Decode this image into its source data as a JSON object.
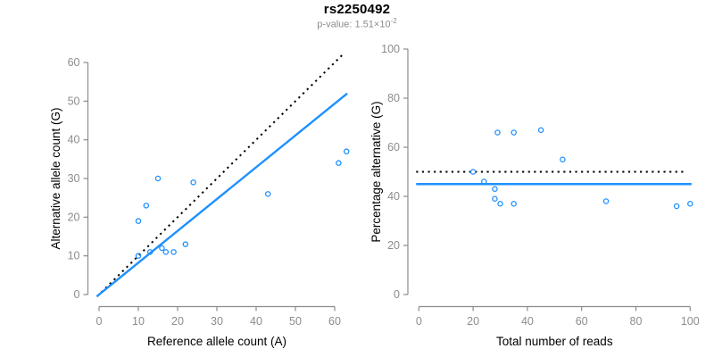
{
  "header": {
    "title": "rs2250492",
    "p_value_text": "p-value: 1.51×10",
    "p_value_exponent": "-2"
  },
  "colors": {
    "points": "#1e90ff",
    "fit_line": "#1e90ff",
    "identity_line": "#000000",
    "axis": "#8c8c8c",
    "tick_label": "#8c8c8c",
    "axis_title": "#000000",
    "subtitle": "#8c8c8c"
  },
  "chart_data": [
    {
      "type": "scatter",
      "title": "rs2250492",
      "xlabel": "Reference allele count (A)",
      "ylabel": "Alternative allele count (G)",
      "xlim": [
        0,
        60
      ],
      "ylim": [
        0,
        60
      ],
      "xticks": [
        0,
        10,
        20,
        30,
        40,
        50,
        60
      ],
      "yticks": [
        0,
        10,
        20,
        30,
        40,
        50,
        60
      ],
      "grid": false,
      "legend": false,
      "points": [
        [
          10,
          10
        ],
        [
          13,
          11
        ],
        [
          16,
          12
        ],
        [
          17,
          11
        ],
        [
          19,
          11
        ],
        [
          22,
          13
        ],
        [
          10,
          19
        ],
        [
          12,
          23
        ],
        [
          15,
          30
        ],
        [
          24,
          29
        ],
        [
          43,
          26
        ],
        [
          61,
          34
        ],
        [
          63,
          37
        ]
      ],
      "lines": [
        {
          "name": "identity-line",
          "style": "dotted",
          "from": [
            -0.5,
            -0.5
          ],
          "to": [
            62.5,
            62.5
          ]
        },
        {
          "name": "fit-line",
          "style": "solid",
          "from": [
            -0.6,
            -0.5
          ],
          "to": [
            63.2,
            52.0
          ]
        }
      ]
    },
    {
      "type": "scatter",
      "xlabel": "Total number of reads",
      "ylabel": "Percentage alternative (G)",
      "xlim": [
        0,
        100
      ],
      "ylim": [
        0,
        100
      ],
      "xticks": [
        0,
        20,
        40,
        60,
        80,
        100
      ],
      "yticks": [
        0,
        20,
        40,
        60,
        80,
        100
      ],
      "grid": false,
      "legend": false,
      "points": [
        [
          20,
          50
        ],
        [
          24,
          46
        ],
        [
          28,
          43
        ],
        [
          28,
          39
        ],
        [
          30,
          37
        ],
        [
          35,
          37
        ],
        [
          29,
          66
        ],
        [
          35,
          66
        ],
        [
          45,
          67
        ],
        [
          53,
          55
        ],
        [
          69,
          38
        ],
        [
          95,
          36
        ],
        [
          100,
          37
        ]
      ],
      "lines": [
        {
          "name": "expected-line",
          "style": "dotted",
          "from": [
            -1,
            50
          ],
          "to": [
            98,
            50
          ]
        },
        {
          "name": "fit-line",
          "style": "solid",
          "from": [
            -1,
            45
          ],
          "to": [
            100.5,
            45
          ]
        }
      ]
    }
  ]
}
